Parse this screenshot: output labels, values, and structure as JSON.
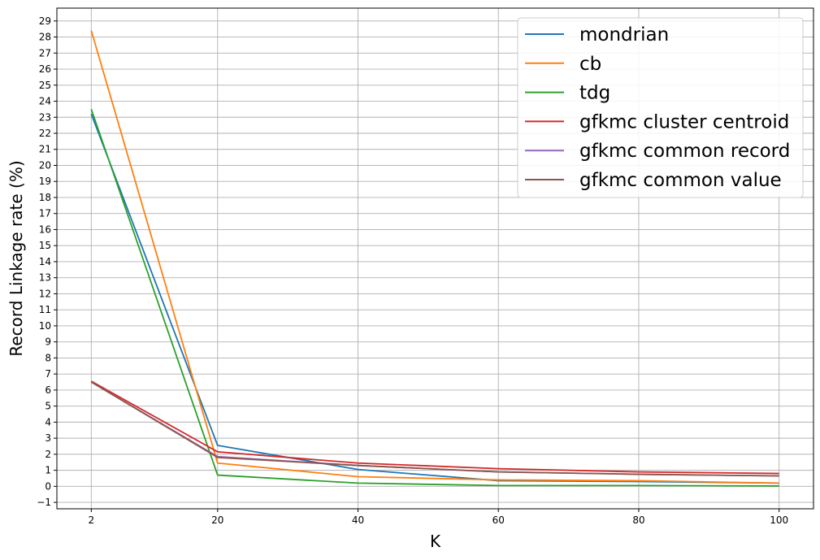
{
  "chart_data": {
    "type": "line",
    "xlabel": "K",
    "ylabel": "Record Linkage rate (%)",
    "x": [
      2,
      20,
      40,
      60,
      80,
      100
    ],
    "xticks": [
      2,
      20,
      40,
      60,
      80,
      100
    ],
    "xlim": [
      -2.9,
      104.9
    ],
    "ylim": [
      -1.4,
      29.8
    ],
    "yticks": [
      -1,
      0,
      1,
      2,
      3,
      4,
      5,
      6,
      7,
      8,
      9,
      10,
      11,
      12,
      13,
      14,
      15,
      16,
      17,
      18,
      19,
      20,
      21,
      22,
      23,
      24,
      25,
      26,
      27,
      28,
      29
    ],
    "ytick_labels": [
      "−1",
      "0",
      "1",
      "2",
      "3",
      "4",
      "5",
      "6",
      "7",
      "8",
      "9",
      "10",
      "11",
      "12",
      "13",
      "14",
      "15",
      "16",
      "17",
      "18",
      "19",
      "20",
      "21",
      "22",
      "23",
      "24",
      "25",
      "26",
      "27",
      "28",
      "29"
    ],
    "grid": true,
    "legend_position": "top-right",
    "series": [
      {
        "name": "mondrian",
        "color": "#1f77b4",
        "values": [
          23.2,
          2.55,
          1.05,
          0.35,
          0.3,
          0.2
        ]
      },
      {
        "name": "cb",
        "color": "#ff7f0e",
        "values": [
          28.4,
          1.45,
          0.6,
          0.4,
          0.35,
          0.2
        ]
      },
      {
        "name": "tdg",
        "color": "#2ca02c",
        "values": [
          23.5,
          0.7,
          0.2,
          0.05,
          0.05,
          0.02
        ]
      },
      {
        "name": "gfkmc cluster centroid",
        "color": "#d62728",
        "values": [
          6.55,
          2.15,
          1.45,
          1.1,
          0.9,
          0.8
        ]
      },
      {
        "name": "gfkmc common record",
        "color": "#9467bd",
        "values": [
          6.5,
          1.85,
          1.3,
          0.9,
          0.75,
          0.65
        ]
      },
      {
        "name": "gfkmc common value",
        "color": "#8c564b",
        "values": [
          6.5,
          1.8,
          1.3,
          0.9,
          0.75,
          0.65
        ]
      }
    ]
  }
}
